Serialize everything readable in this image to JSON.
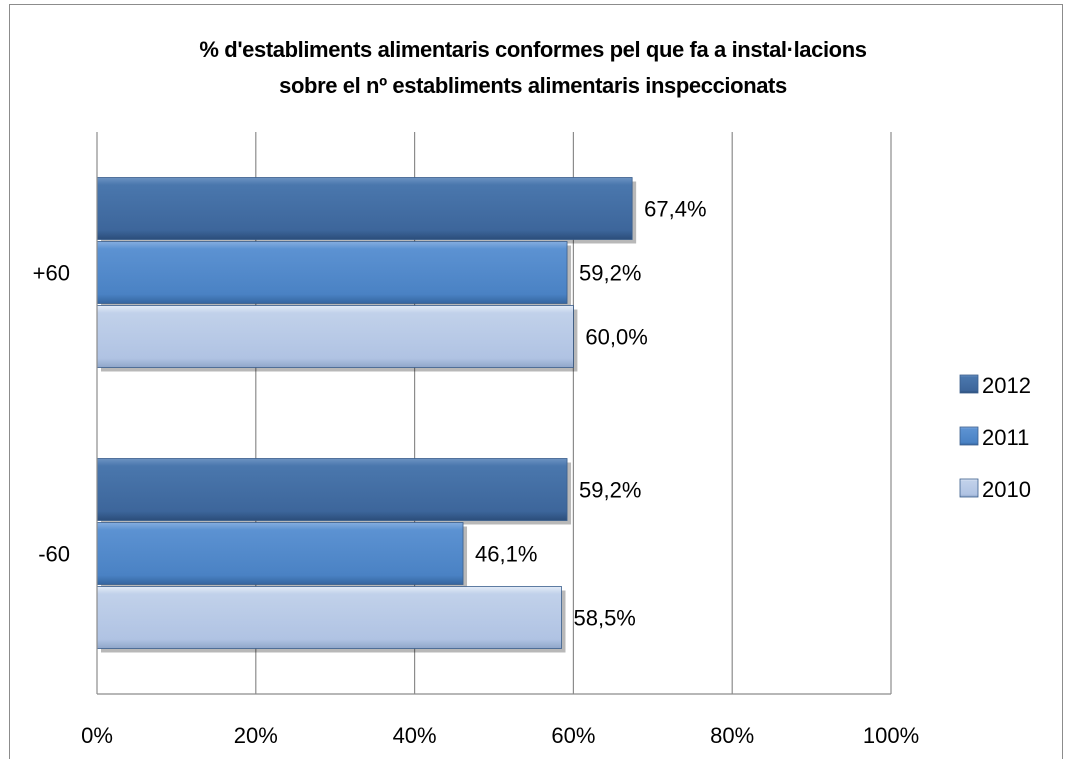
{
  "chart_data": {
    "type": "bar",
    "orientation": "horizontal",
    "title_lines": [
      "% d'establiments alimentaris conformes pel que fa a  instal·lacions",
      "sobre el nº establiments alimentaris inspeccionats"
    ],
    "categories": [
      "+60",
      "-60"
    ],
    "series": [
      {
        "name": "2012",
        "values": [
          67.4,
          59.2
        ],
        "labels": [
          "67,4%",
          "59,2%"
        ],
        "color": "#3f6aa0"
      },
      {
        "name": "2011",
        "values": [
          59.2,
          46.1
        ],
        "labels": [
          "59,2%",
          "46,1%"
        ],
        "color": "#4f86c6"
      },
      {
        "name": "2010",
        "values": [
          60.0,
          58.5
        ],
        "labels": [
          "60,0%",
          "58,5%"
        ],
        "color": "#b4c6e4"
      }
    ],
    "xlim": [
      0,
      100
    ],
    "xticks": [
      0,
      20,
      40,
      60,
      80,
      100
    ],
    "xtick_labels": [
      "0%",
      "20%",
      "40%",
      "60%",
      "80%",
      "100%"
    ],
    "grid": true,
    "legend_position": "right"
  }
}
